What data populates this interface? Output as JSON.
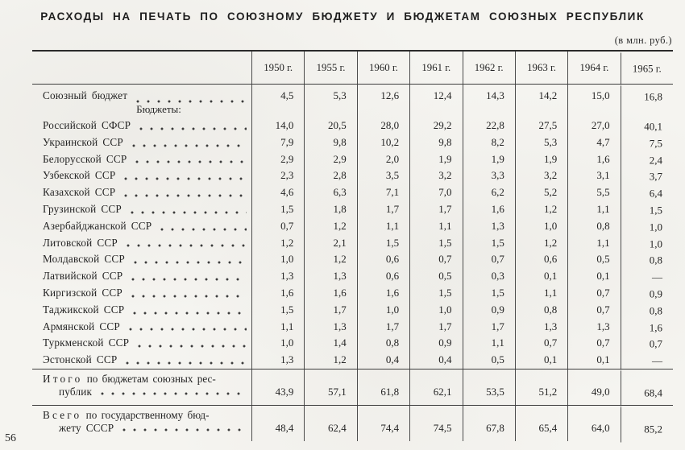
{
  "title": "РАСХОДЫ НА ПЕЧАТЬ ПО СОЮЗНОМУ БЮДЖЕТУ И БЮДЖЕТАМ СОЮЗНЫХ РЕСПУБЛИК",
  "units": "(в млн. руб.)",
  "page_number": "56",
  "table": {
    "columns": [
      "1950 г.",
      "1955 г.",
      "1960 г.",
      "1961 г.",
      "1962 г.",
      "1963 г.",
      "1964 г.",
      "1965 г."
    ],
    "rows": [
      {
        "type": "data",
        "label": "Союзный бюджет",
        "values": [
          "4,5",
          "5,3",
          "12,6",
          "12,4",
          "14,3",
          "14,2",
          "15,0",
          "16,8"
        ]
      },
      {
        "type": "subheading",
        "label": "Бюджеты:"
      },
      {
        "type": "data",
        "label": "Российской СФСР",
        "values": [
          "14,0",
          "20,5",
          "28,0",
          "29,2",
          "22,8",
          "27,5",
          "27,0",
          "40,1"
        ]
      },
      {
        "type": "data",
        "label": "Украинской ССР",
        "values": [
          "7,9",
          "9,8",
          "10,2",
          "9,8",
          "8,2",
          "5,3",
          "4,7",
          "7,5"
        ]
      },
      {
        "type": "data",
        "label": "Белорусской ССР",
        "values": [
          "2,9",
          "2,9",
          "2,0",
          "1,9",
          "1,9",
          "1,9",
          "1,6",
          "2,4"
        ]
      },
      {
        "type": "data",
        "label": "Узбекской ССР",
        "values": [
          "2,3",
          "2,8",
          "3,5",
          "3,2",
          "3,3",
          "3,2",
          "3,1",
          "3,7"
        ]
      },
      {
        "type": "data",
        "label": "Казахской ССР",
        "values": [
          "4,6",
          "6,3",
          "7,1",
          "7,0",
          "6,2",
          "5,2",
          "5,5",
          "6,4"
        ]
      },
      {
        "type": "data",
        "label": "Грузинской ССР",
        "values": [
          "1,5",
          "1,8",
          "1,7",
          "1,7",
          "1,6",
          "1,2",
          "1,1",
          "1,5"
        ]
      },
      {
        "type": "data",
        "label": "Азербайджанской ССР",
        "values": [
          "0,7",
          "1,2",
          "1,1",
          "1,1",
          "1,3",
          "1,0",
          "0,8",
          "1,0"
        ]
      },
      {
        "type": "data",
        "label": "Литовской ССР",
        "values": [
          "1,2",
          "2,1",
          "1,5",
          "1,5",
          "1,5",
          "1,2",
          "1,1",
          "1,0"
        ]
      },
      {
        "type": "data",
        "label": "Молдавской ССР",
        "values": [
          "1,0",
          "1,2",
          "0,6",
          "0,7",
          "0,7",
          "0,6",
          "0,5",
          "0,8"
        ]
      },
      {
        "type": "data",
        "label": "Латвийской ССР",
        "values": [
          "1,3",
          "1,3",
          "0,6",
          "0,5",
          "0,3",
          "0,1",
          "0,1",
          "—"
        ]
      },
      {
        "type": "data",
        "label": "Киргизской ССР",
        "values": [
          "1,6",
          "1,6",
          "1,6",
          "1,5",
          "1,5",
          "1,1",
          "0,7",
          "0,9"
        ]
      },
      {
        "type": "data",
        "label": "Таджикской ССР",
        "values": [
          "1,5",
          "1,7",
          "1,0",
          "1,0",
          "0,9",
          "0,8",
          "0,7",
          "0,8"
        ]
      },
      {
        "type": "data",
        "label": "Армянской ССР",
        "values": [
          "1,1",
          "1,3",
          "1,7",
          "1,7",
          "1,7",
          "1,3",
          "1,3",
          "1,6"
        ]
      },
      {
        "type": "data",
        "label": "Туркменской ССР",
        "values": [
          "1,0",
          "1,4",
          "0,8",
          "0,9",
          "1,1",
          "0,7",
          "0,7",
          "0,7"
        ]
      },
      {
        "type": "data",
        "label": "Эстонской ССР",
        "values": [
          "1,3",
          "1,2",
          "0,4",
          "0,4",
          "0,5",
          "0,1",
          "0,1",
          "—"
        ]
      }
    ],
    "totals": [
      {
        "lead": "Итого",
        "rest": "по бюджетам союзных рес-",
        "line2": "публик",
        "values": [
          "43,9",
          "57,1",
          "61,8",
          "62,1",
          "53,5",
          "51,2",
          "49,0",
          "68,4"
        ]
      },
      {
        "lead": "Всего",
        "rest": "по государственному бюд-",
        "line2": "жету СССР",
        "values": [
          "48,4",
          "62,4",
          "74,4",
          "74,5",
          "67,8",
          "65,4",
          "64,0",
          "85,2"
        ]
      }
    ]
  }
}
